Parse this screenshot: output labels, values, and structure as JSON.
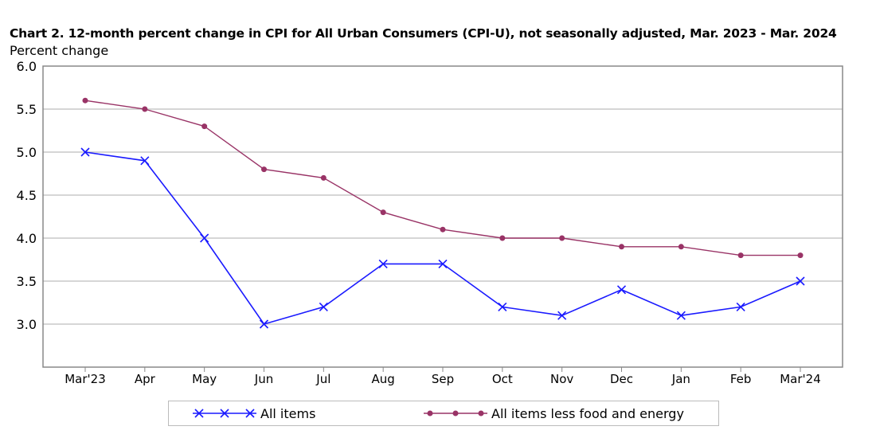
{
  "chart_data": {
    "type": "line",
    "title": "Chart 2. 12-month percent change in CPI for All Urban Consumers (CPI-U), not seasonally adjusted, Mar. 2023 - Mar. 2024",
    "ylabel": "Percent change",
    "xlabel": "",
    "categories": [
      "Mar'23",
      "Apr",
      "May",
      "Jun",
      "Jul",
      "Aug",
      "Sep",
      "Oct",
      "Nov",
      "Dec",
      "Jan",
      "Feb",
      "Mar'24"
    ],
    "ylim": [
      2.5,
      6.0
    ],
    "yticks": [
      "3.0",
      "3.5",
      "4.0",
      "4.5",
      "5.0",
      "5.5",
      "6.0"
    ],
    "grid": true,
    "legend_position": "bottom",
    "series": [
      {
        "name": "All items",
        "color": "#1a1aff",
        "marker": "x",
        "values": [
          5.0,
          4.9,
          4.0,
          3.0,
          3.2,
          3.7,
          3.7,
          3.2,
          3.1,
          3.4,
          3.1,
          3.2,
          3.5
        ]
      },
      {
        "name": "All items less food and energy",
        "color": "#993366",
        "marker": "circle",
        "values": [
          5.6,
          5.5,
          5.3,
          4.8,
          4.7,
          4.3,
          4.1,
          4.0,
          4.0,
          3.9,
          3.9,
          3.8,
          3.8
        ]
      }
    ]
  }
}
